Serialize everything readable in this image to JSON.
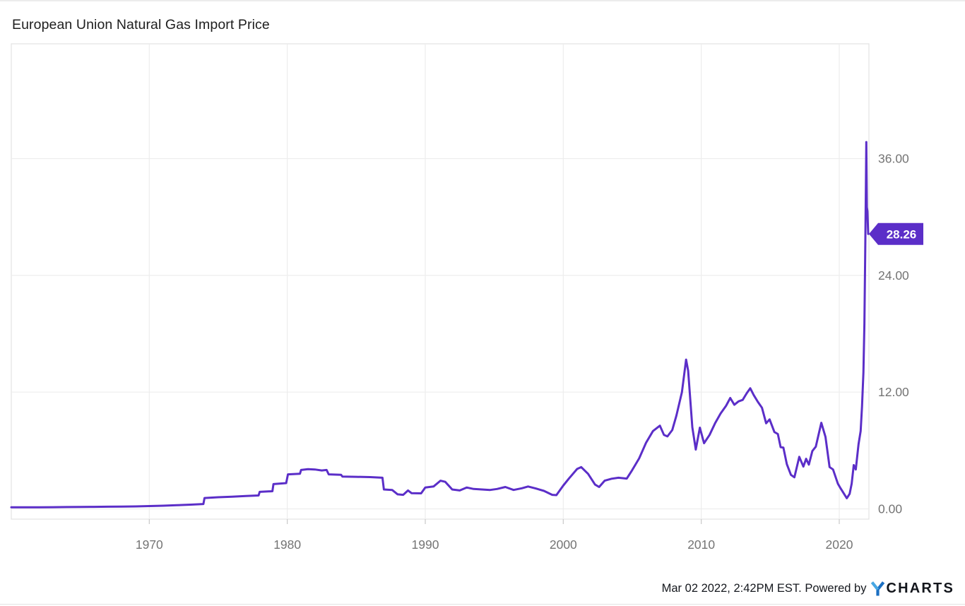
{
  "page": {
    "title": "European Union Natural Gas Import Price",
    "footer": {
      "timestamp_text": "Mar 02 2022, 2:42PM EST. Powered by",
      "logo_charts": "CHARTS"
    }
  },
  "chart_data": {
    "type": "line",
    "title": "European Union Natural Gas Import Price",
    "xlabel": "",
    "ylabel": "",
    "grid": true,
    "legend_position": "none",
    "line_color": "#5b2ec8",
    "grid_color": "#ededed",
    "border_color": "#e2e2e2",
    "tick_color": "#c9c9c9",
    "label_color": "#747474",
    "badge_text_color": "#ffffff",
    "xlim": [
      1960,
      2022.15
    ],
    "ylim": [
      -1.05,
      47.8
    ],
    "x_ticks": [
      {
        "value": 1970,
        "label": "1970"
      },
      {
        "value": 1980,
        "label": "1980"
      },
      {
        "value": 1990,
        "label": "1990"
      },
      {
        "value": 2000,
        "label": "2000"
      },
      {
        "value": 2010,
        "label": "2010"
      },
      {
        "value": 2020,
        "label": "2020"
      }
    ],
    "y_ticks": [
      {
        "value": 0,
        "label": "0.00"
      },
      {
        "value": 12,
        "label": "12.00"
      },
      {
        "value": 24,
        "label": "24.00"
      },
      {
        "value": 36,
        "label": "36.00"
      }
    ],
    "last_value": 28.26,
    "last_value_label": "28.26",
    "series": [
      {
        "name": "European Union Natural Gas Import Price",
        "points": [
          [
            1960,
            0.16
          ],
          [
            1961,
            0.17
          ],
          [
            1962,
            0.17
          ],
          [
            1963,
            0.18
          ],
          [
            1964,
            0.19
          ],
          [
            1965,
            0.2
          ],
          [
            1966,
            0.21
          ],
          [
            1967,
            0.23
          ],
          [
            1968,
            0.24
          ],
          [
            1969,
            0.26
          ],
          [
            1970,
            0.29
          ],
          [
            1971,
            0.33
          ],
          [
            1972,
            0.38
          ],
          [
            1973,
            0.44
          ],
          [
            1973.92,
            0.5
          ],
          [
            1974,
            1.12
          ],
          [
            1975,
            1.2
          ],
          [
            1976,
            1.26
          ],
          [
            1977,
            1.32
          ],
          [
            1977.92,
            1.38
          ],
          [
            1978,
            1.75
          ],
          [
            1978.92,
            1.82
          ],
          [
            1979,
            2.55
          ],
          [
            1979.92,
            2.65
          ],
          [
            1980.05,
            3.55
          ],
          [
            1980.92,
            3.62
          ],
          [
            1981,
            4.0
          ],
          [
            1981.5,
            4.08
          ],
          [
            1982,
            4.05
          ],
          [
            1982.5,
            3.95
          ],
          [
            1982.85,
            4.0
          ],
          [
            1983,
            3.55
          ],
          [
            1983.9,
            3.5
          ],
          [
            1984,
            3.32
          ],
          [
            1985,
            3.3
          ],
          [
            1986,
            3.27
          ],
          [
            1986.9,
            3.2
          ],
          [
            1987,
            2.0
          ],
          [
            1987.6,
            1.95
          ],
          [
            1988,
            1.5
          ],
          [
            1988.4,
            1.45
          ],
          [
            1988.75,
            1.9
          ],
          [
            1989,
            1.62
          ],
          [
            1989.7,
            1.6
          ],
          [
            1990,
            2.2
          ],
          [
            1990.6,
            2.3
          ],
          [
            1991.1,
            2.9
          ],
          [
            1991.45,
            2.78
          ],
          [
            1991.95,
            2.0
          ],
          [
            1992.5,
            1.9
          ],
          [
            1993,
            2.2
          ],
          [
            1993.5,
            2.05
          ],
          [
            1994.1,
            2.0
          ],
          [
            1994.7,
            1.95
          ],
          [
            1995.2,
            2.05
          ],
          [
            1995.8,
            2.25
          ],
          [
            1996.4,
            1.95
          ],
          [
            1997,
            2.12
          ],
          [
            1997.45,
            2.3
          ],
          [
            1998,
            2.1
          ],
          [
            1998.6,
            1.85
          ],
          [
            1999.2,
            1.45
          ],
          [
            1999.5,
            1.42
          ],
          [
            2000,
            2.4
          ],
          [
            2000.4,
            3.1
          ],
          [
            2001,
            4.1
          ],
          [
            2001.3,
            4.3
          ],
          [
            2001.8,
            3.6
          ],
          [
            2002.3,
            2.5
          ],
          [
            2002.6,
            2.25
          ],
          [
            2003,
            2.9
          ],
          [
            2003.5,
            3.1
          ],
          [
            2004,
            3.2
          ],
          [
            2004.6,
            3.12
          ],
          [
            2005,
            4.0
          ],
          [
            2005.5,
            5.2
          ],
          [
            2006,
            6.8
          ],
          [
            2006.5,
            8.0
          ],
          [
            2007,
            8.55
          ],
          [
            2007.3,
            7.6
          ],
          [
            2007.55,
            7.45
          ],
          [
            2007.9,
            8.1
          ],
          [
            2008.2,
            9.6
          ],
          [
            2008.6,
            12.0
          ],
          [
            2008.9,
            15.35
          ],
          [
            2009.05,
            14.2
          ],
          [
            2009.35,
            8.4
          ],
          [
            2009.6,
            6.1
          ],
          [
            2009.9,
            8.35
          ],
          [
            2010.2,
            6.75
          ],
          [
            2010.6,
            7.6
          ],
          [
            2011,
            8.8
          ],
          [
            2011.4,
            9.8
          ],
          [
            2011.8,
            10.6
          ],
          [
            2012.1,
            11.4
          ],
          [
            2012.4,
            10.7
          ],
          [
            2012.7,
            11.05
          ],
          [
            2013,
            11.2
          ],
          [
            2013.3,
            11.9
          ],
          [
            2013.55,
            12.4
          ],
          [
            2013.8,
            11.7
          ],
          [
            2014.1,
            11.0
          ],
          [
            2014.4,
            10.4
          ],
          [
            2014.7,
            8.8
          ],
          [
            2014.95,
            9.2
          ],
          [
            2015.3,
            7.9
          ],
          [
            2015.55,
            7.7
          ],
          [
            2015.75,
            6.35
          ],
          [
            2015.95,
            6.3
          ],
          [
            2016.2,
            4.6
          ],
          [
            2016.5,
            3.5
          ],
          [
            2016.75,
            3.25
          ],
          [
            2017.1,
            5.35
          ],
          [
            2017.4,
            4.35
          ],
          [
            2017.6,
            5.15
          ],
          [
            2017.8,
            4.55
          ],
          [
            2018.05,
            5.95
          ],
          [
            2018.3,
            6.4
          ],
          [
            2018.7,
            8.85
          ],
          [
            2019,
            7.4
          ],
          [
            2019.3,
            4.3
          ],
          [
            2019.55,
            4.05
          ],
          [
            2019.9,
            2.6
          ],
          [
            2020.1,
            2.1
          ],
          [
            2020.55,
            1.1
          ],
          [
            2020.75,
            1.55
          ],
          [
            2020.9,
            2.6
          ],
          [
            2021.05,
            4.5
          ],
          [
            2021.2,
            4.05
          ],
          [
            2021.4,
            6.65
          ],
          [
            2021.55,
            8.0
          ],
          [
            2021.65,
            10.5
          ],
          [
            2021.75,
            14.0
          ],
          [
            2021.82,
            19.0
          ],
          [
            2021.88,
            26.0
          ],
          [
            2021.93,
            33.0
          ],
          [
            2021.96,
            37.7
          ],
          [
            2022.0,
            31.0
          ],
          [
            2022.04,
            30.6
          ],
          [
            2022.08,
            29.0
          ],
          [
            2022.1,
            28.26
          ]
        ]
      }
    ]
  }
}
